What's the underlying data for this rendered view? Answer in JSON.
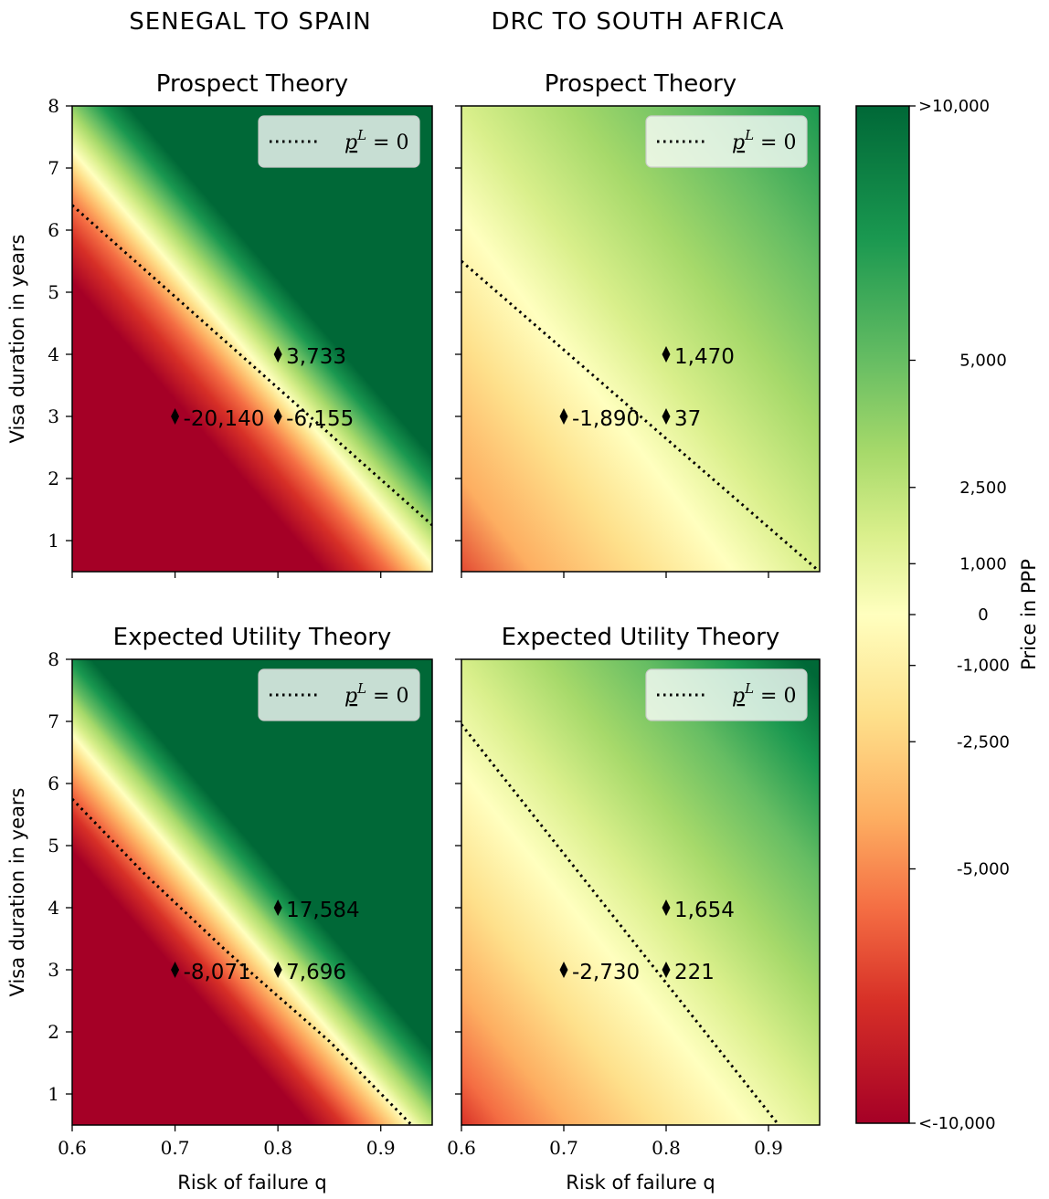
{
  "figure": {
    "column_titles": [
      "SENEGAL TO SPAIN",
      "DRC TO SOUTH AFRICA"
    ]
  },
  "chart_data": {
    "type": "heatmap",
    "xlabel": "Risk of failure q",
    "ylabel": "Visa duration in years",
    "xlim": [
      0.6,
      0.95
    ],
    "ylim": [
      0.5,
      8
    ],
    "xticks": [
      "0.6",
      "0.7",
      "0.8",
      "0.9"
    ],
    "yticks": [
      "1",
      "2",
      "3",
      "4",
      "5",
      "6",
      "7",
      "8"
    ],
    "legend_label": "p^L = 0",
    "legend_placement": "top-right",
    "colorbar": {
      "label": "Price in PPP",
      "colormap": "RdYlGn",
      "tick_labels": [
        ">10,000",
        "5,000",
        "2,500",
        "1,000",
        "0",
        "-1,000",
        "-2,500",
        "-5,000",
        "<-10,000"
      ]
    },
    "panels": [
      {
        "title": "Prospect Theory",
        "column": "SENEGAL TO SPAIN",
        "zero_line": [
          [
            0.6,
            6.4
          ],
          [
            0.95,
            1.25
          ]
        ],
        "points": [
          {
            "q": 0.8,
            "years": 4,
            "label": "3,733"
          },
          {
            "q": 0.7,
            "years": 3,
            "label": "-20,140"
          },
          {
            "q": 0.8,
            "years": 3,
            "label": "-6,155"
          }
        ]
      },
      {
        "title": "Prospect Theory",
        "column": "DRC TO SOUTH AFRICA",
        "zero_line": [
          [
            0.6,
            5.5
          ],
          [
            0.95,
            0.5
          ]
        ],
        "points": [
          {
            "q": 0.8,
            "years": 4,
            "label": "1,470"
          },
          {
            "q": 0.7,
            "years": 3,
            "label": "-1,890"
          },
          {
            "q": 0.8,
            "years": 3,
            "label": "37"
          }
        ]
      },
      {
        "title": "Expected Utility Theory",
        "column": "SENEGAL TO SPAIN",
        "zero_line": [
          [
            0.6,
            5.75
          ],
          [
            0.67,
            4.55
          ],
          [
            0.75,
            3.3
          ],
          [
            0.85,
            1.85
          ],
          [
            0.93,
            0.5
          ]
        ],
        "points": [
          {
            "q": 0.8,
            "years": 4,
            "label": "17,584"
          },
          {
            "q": 0.7,
            "years": 3,
            "label": "-8,071"
          },
          {
            "q": 0.8,
            "years": 3,
            "label": "7,696"
          }
        ]
      },
      {
        "title": "Expected Utility Theory",
        "column": "DRC TO SOUTH AFRICA",
        "zero_line": [
          [
            0.6,
            6.95
          ],
          [
            0.91,
            0.5
          ]
        ],
        "points": [
          {
            "q": 0.8,
            "years": 4,
            "label": "1,654"
          },
          {
            "q": 0.7,
            "years": 3,
            "label": "-2,730"
          },
          {
            "q": 0.8,
            "years": 3,
            "label": "221"
          }
        ]
      }
    ]
  }
}
